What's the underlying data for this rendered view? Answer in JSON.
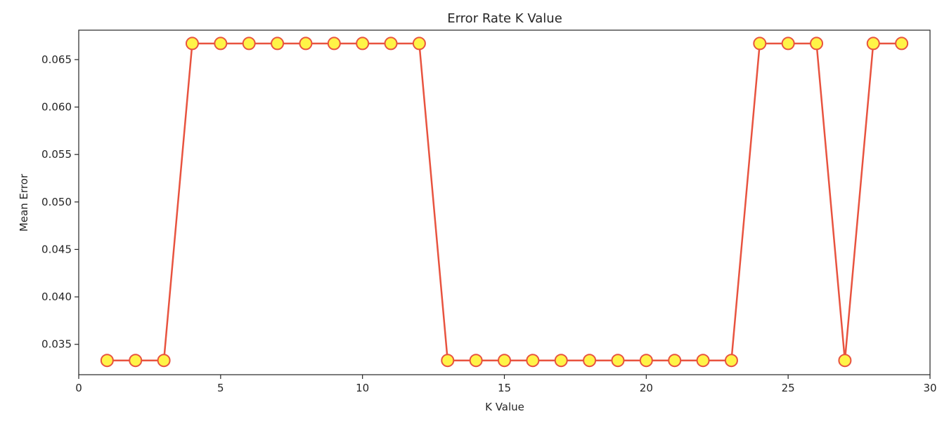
{
  "chart_data": {
    "type": "line",
    "title": "Error Rate K Value",
    "xlabel": "K Value",
    "ylabel": "Mean Error",
    "xlim": [
      0,
      30
    ],
    "ylim": [
      0.0318,
      0.0681
    ],
    "x_ticks": [
      0,
      5,
      10,
      15,
      20,
      25,
      30
    ],
    "x_tick_labels": [
      "0",
      "5",
      "10",
      "15",
      "20",
      "25",
      "30"
    ],
    "y_ticks": [
      0.035,
      0.04,
      0.045,
      0.05,
      0.055,
      0.06,
      0.065
    ],
    "y_tick_labels": [
      "0.035",
      "0.040",
      "0.045",
      "0.050",
      "0.055",
      "0.060",
      "0.065"
    ],
    "grid": false,
    "series": [
      {
        "x": [
          1,
          2,
          3,
          4,
          5,
          6,
          7,
          8,
          9,
          10,
          11,
          12,
          13,
          14,
          15,
          16,
          17,
          18,
          19,
          20,
          21,
          22,
          23,
          24,
          25,
          26,
          27,
          28,
          29
        ],
        "y": [
          0.0333,
          0.0333,
          0.0333,
          0.0667,
          0.0667,
          0.0667,
          0.0667,
          0.0667,
          0.0667,
          0.0667,
          0.0667,
          0.0667,
          0.0333,
          0.0333,
          0.0333,
          0.0333,
          0.0333,
          0.0333,
          0.0333,
          0.0333,
          0.0333,
          0.0333,
          0.0333,
          0.0667,
          0.0667,
          0.0667,
          0.0333,
          0.0667,
          0.0667
        ],
        "line_color": "#e8533f",
        "marker_face": "#fff447",
        "marker_edge": "#e8533f"
      }
    ]
  }
}
